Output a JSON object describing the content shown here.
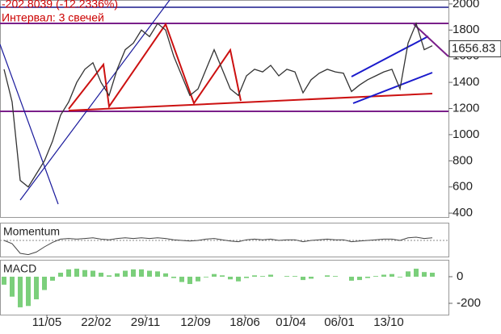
{
  "chart_data": [
    {
      "type": "line",
      "annotations": [
        "-202.8039 (-12.2336%)",
        "Интервал: 3 свечей"
      ],
      "last_value": 1656.83,
      "series": [
        {
          "color": "#333333",
          "values": [
            1500,
            1250,
            650,
            600,
            700,
            800,
            950,
            1150,
            1250,
            1400,
            1500,
            1550,
            1400,
            1300,
            1500,
            1650,
            1700,
            1800,
            1750,
            1850,
            1800,
            1600,
            1450,
            1300,
            1350,
            1500,
            1650,
            1500,
            1350,
            1300,
            1450,
            1500,
            1480,
            1530,
            1450,
            1500,
            1480,
            1320,
            1420,
            1470,
            1500,
            1480,
            1470,
            1330,
            1380,
            1420,
            1450,
            1480,
            1500,
            1350,
            1700,
            1850,
            1650,
            1680
          ]
        }
      ],
      "xlim": [
        -0.5,
        53.5
      ],
      "xticks": [
        {
          "value": 5.3,
          "label": "11/05"
        },
        {
          "value": 11.4,
          "label": "22/02"
        },
        {
          "value": 17.5,
          "label": "29/11"
        },
        {
          "value": 23.7,
          "label": "12/09"
        },
        {
          "value": 29.8,
          "label": "18/06"
        },
        {
          "value": 35.5,
          "label": "01/04"
        },
        {
          "value": 41.5,
          "label": "06/01"
        },
        {
          "value": 47.6,
          "label": "13/10"
        }
      ],
      "ylim": [
        370,
        2030
      ],
      "yticks": [
        400,
        600,
        800,
        1000,
        1200,
        1400,
        1600,
        1800,
        2000
      ]
    },
    {
      "type": "line",
      "title": "Momentum",
      "color": "#444444",
      "values": [
        0,
        -5,
        -20,
        -22,
        -18,
        -10,
        -3,
        2,
        3,
        2,
        3,
        4,
        2,
        1,
        3,
        4,
        3,
        4,
        3,
        4,
        3,
        1,
        0,
        -1,
        0,
        2,
        3,
        1,
        -1,
        -2,
        1,
        2,
        1,
        2,
        0,
        1,
        1,
        -2,
        0,
        1,
        2,
        1,
        1,
        -2,
        -1,
        0,
        1,
        2,
        2,
        0,
        4,
        5,
        3,
        4
      ],
      "ylim": [
        -25,
        25
      ]
    },
    {
      "type": "bar",
      "title": "MACD",
      "color": "#7bcf7b",
      "values": [
        -60,
        -150,
        -230,
        -220,
        -170,
        -100,
        -30,
        30,
        55,
        60,
        50,
        45,
        30,
        10,
        25,
        45,
        55,
        55,
        45,
        40,
        25,
        -10,
        -40,
        -55,
        -35,
        -5,
        20,
        10,
        -20,
        -35,
        -10,
        10,
        5,
        15,
        0,
        5,
        5,
        -25,
        -15,
        0,
        10,
        5,
        0,
        -30,
        -25,
        -10,
        5,
        15,
        20,
        -5,
        40,
        60,
        35,
        30
      ],
      "ylim": [
        -285,
        121
      ],
      "yticks": [
        -200,
        0
      ]
    }
  ]
}
